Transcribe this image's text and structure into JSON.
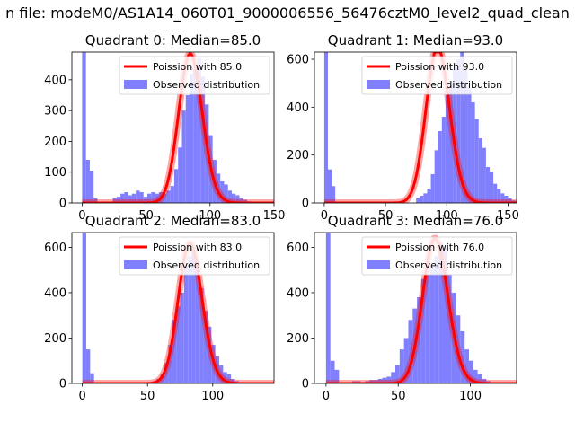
{
  "figure": {
    "suptitle": "n file: modeM0/AS1A14_060T01_9000006556_56476cztM0_level2_quad_clean"
  },
  "chart_data": [
    {
      "type": "bar",
      "title": "Quadrant 0: Median=85.0",
      "median": 85.0,
      "xlim": [
        -8,
        150
      ],
      "ylim": [
        0,
        490
      ],
      "xticks": [
        0,
        50,
        100,
        150
      ],
      "yticks": [
        0,
        100,
        200,
        300,
        400
      ],
      "bin_width": 3,
      "hist_start": 0,
      "hist_values": [
        490,
        140,
        105,
        15,
        0,
        0,
        0,
        0,
        15,
        20,
        30,
        35,
        25,
        30,
        40,
        35,
        20,
        30,
        35,
        30,
        35,
        30,
        40,
        55,
        110,
        180,
        300,
        350,
        420,
        440,
        470,
        410,
        320,
        220,
        140,
        95,
        70,
        60,
        40,
        30,
        25,
        15,
        10,
        5,
        2
      ],
      "legend": [
        {
          "label": "Poission with 85.0",
          "kind": "line",
          "color": "#ff0000"
        },
        {
          "label": "Observed distribution",
          "kind": "patch",
          "color": "#8080ff"
        }
      ]
    },
    {
      "type": "bar",
      "title": "Quadrant 1: Median=93.0",
      "median": 93.0,
      "xlim": [
        -8,
        157
      ],
      "ylim": [
        0,
        630
      ],
      "xticks": [
        0,
        50,
        100,
        150
      ],
      "yticks": [
        0,
        200,
        400,
        600
      ],
      "bin_width": 3,
      "hist_start": 0,
      "hist_values": [
        630,
        140,
        70,
        0,
        0,
        0,
        0,
        0,
        0,
        0,
        0,
        0,
        0,
        0,
        0,
        0,
        0,
        0,
        0,
        0,
        0,
        0,
        0,
        0,
        0,
        20,
        30,
        40,
        60,
        120,
        220,
        300,
        360,
        450,
        500,
        560,
        600,
        630,
        560,
        480,
        420,
        350,
        270,
        230,
        150,
        130,
        80,
        60,
        40,
        30,
        20,
        10,
        5,
        2
      ],
      "legend": [
        {
          "label": "Poission with 93.0",
          "kind": "line",
          "color": "#ff0000"
        },
        {
          "label": "Observed distribution",
          "kind": "patch",
          "color": "#8080ff"
        }
      ]
    },
    {
      "type": "bar",
      "title": "Quadrant 2: Median=83.0",
      "median": 83.0,
      "xlim": [
        -8,
        147
      ],
      "ylim": [
        0,
        665
      ],
      "xticks": [
        0,
        50,
        100
      ],
      "yticks": [
        0,
        200,
        400,
        600
      ],
      "bin_width": 3,
      "hist_start": 0,
      "hist_values": [
        665,
        150,
        45,
        5,
        0,
        0,
        0,
        0,
        0,
        0,
        0,
        0,
        0,
        0,
        0,
        0,
        5,
        5,
        10,
        20,
        40,
        90,
        170,
        280,
        340,
        400,
        520,
        560,
        600,
        540,
        420,
        320,
        250,
        170,
        120,
        80,
        50,
        40,
        20,
        10,
        5,
        3
      ],
      "legend": [
        {
          "label": "Poission with 83.0",
          "kind": "line",
          "color": "#ff0000"
        },
        {
          "label": "Observed distribution",
          "kind": "patch",
          "color": "#8080ff"
        }
      ]
    },
    {
      "type": "bar",
      "title": "Quadrant 3: Median=76.0",
      "median": 76.0,
      "xlim": [
        -8,
        132
      ],
      "ylim": [
        0,
        665
      ],
      "xticks": [
        0,
        50,
        100
      ],
      "yticks": [
        0,
        200,
        400,
        600
      ],
      "bin_width": 3,
      "hist_start": 0,
      "hist_values": [
        665,
        100,
        60,
        5,
        0,
        5,
        10,
        10,
        5,
        10,
        15,
        15,
        20,
        25,
        30,
        50,
        80,
        150,
        200,
        280,
        330,
        380,
        460,
        480,
        520,
        560,
        620,
        600,
        480,
        400,
        300,
        230,
        150,
        100,
        60,
        40,
        20,
        10
      ],
      "legend": [
        {
          "label": "Poission with 76.0",
          "kind": "line",
          "color": "#ff0000"
        },
        {
          "label": "Observed distribution",
          "kind": "patch",
          "color": "#8080ff"
        }
      ]
    }
  ]
}
